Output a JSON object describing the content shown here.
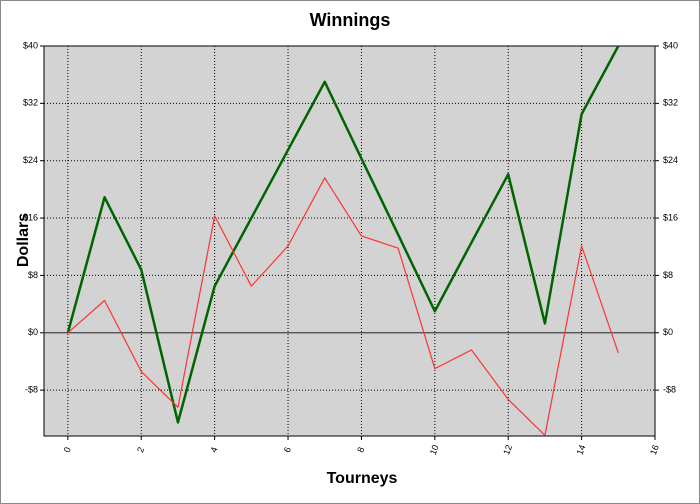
{
  "chart_data": {
    "type": "line",
    "title": "Winnings",
    "x_label": "Tourneys",
    "y_label": "Dollars",
    "x": [
      0,
      1,
      2,
      3,
      4,
      5,
      6,
      7,
      8,
      9,
      10,
      11,
      12,
      13,
      14,
      15
    ],
    "series": [
      {
        "color": "#006400",
        "values": [
          0,
          18.9,
          8.8,
          -12.5,
          6.5,
          16,
          25.5,
          35,
          24.3,
          13.7,
          3,
          12.6,
          22.1,
          1.3,
          30.5,
          40
        ]
      },
      {
        "color": "#ff3333",
        "values": [
          0,
          4.5,
          -5.4,
          -10.4,
          16.3,
          6.5,
          12.1,
          21.6,
          13.5,
          11.8,
          -5,
          -2.4,
          -9.3,
          -14.3,
          12.1,
          -2.8
        ]
      }
    ],
    "xlim": [
      -0.65,
      16
    ],
    "xticks": [
      0,
      2,
      4,
      6,
      8,
      10,
      12,
      14,
      16
    ],
    "ylim": [
      -14.4,
      40
    ],
    "yticks": [
      {
        "value": -8,
        "label": "-$8"
      },
      {
        "value": 0,
        "label": "$0"
      },
      {
        "value": 8,
        "label": "$8"
      },
      {
        "value": 16,
        "label": "$16"
      },
      {
        "value": 24,
        "label": "$24"
      },
      {
        "value": 32,
        "label": "$32"
      },
      {
        "value": 40,
        "label": "$40"
      }
    ],
    "grid": true,
    "plot_background": "#d3d3d3"
  }
}
